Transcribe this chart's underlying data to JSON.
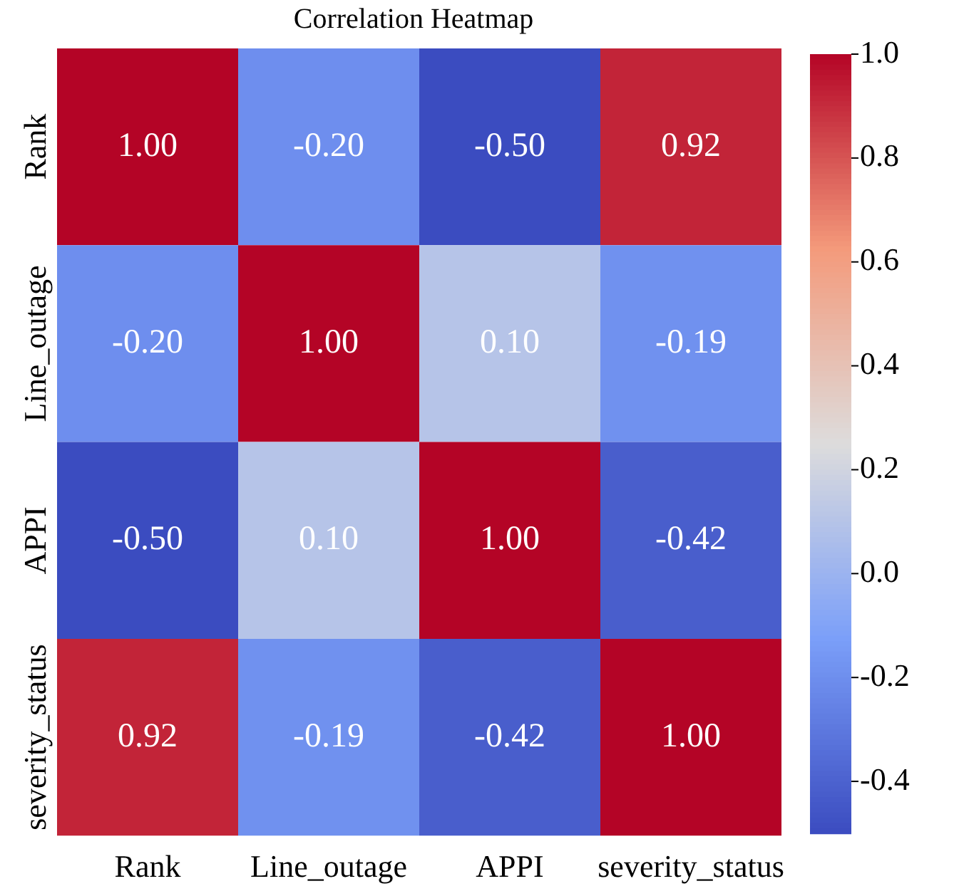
{
  "chart_data": {
    "type": "heatmap",
    "title": "Correlation Heatmap",
    "categories": [
      "Rank",
      "Line_outage",
      "APPI",
      "severity_status"
    ],
    "y_categories": [
      "Rank",
      "Line_outage",
      "APPI",
      "severity_status"
    ],
    "cells": [
      [
        1.0,
        -0.2,
        -0.5,
        0.92
      ],
      [
        -0.2,
        1.0,
        0.1,
        -0.19
      ],
      [
        -0.5,
        0.1,
        1.0,
        -0.42
      ],
      [
        0.92,
        -0.19,
        -0.42,
        1.0
      ]
    ],
    "cell_labels": [
      [
        "1.00",
        "-0.20",
        "-0.50",
        "0.92"
      ],
      [
        "-0.20",
        "1.00",
        "0.10",
        "-0.19"
      ],
      [
        "-0.50",
        "0.10",
        "1.00",
        "-0.42"
      ],
      [
        "0.92",
        "-0.19",
        "-0.42",
        "1.00"
      ]
    ],
    "clim": [
      -0.5,
      1.0
    ],
    "cticks": [
      {
        "value": -0.4,
        "label": "-0.4"
      },
      {
        "value": -0.2,
        "label": "-0.2"
      },
      {
        "value": 0,
        "label": "0.0"
      },
      {
        "value": 0.2,
        "label": "0.2"
      },
      {
        "value": 0.4,
        "label": "0.4"
      },
      {
        "value": 0.6,
        "label": "0.6"
      },
      {
        "value": 0.8,
        "label": "0.8"
      },
      {
        "value": 1,
        "label": "1.0"
      }
    ]
  }
}
